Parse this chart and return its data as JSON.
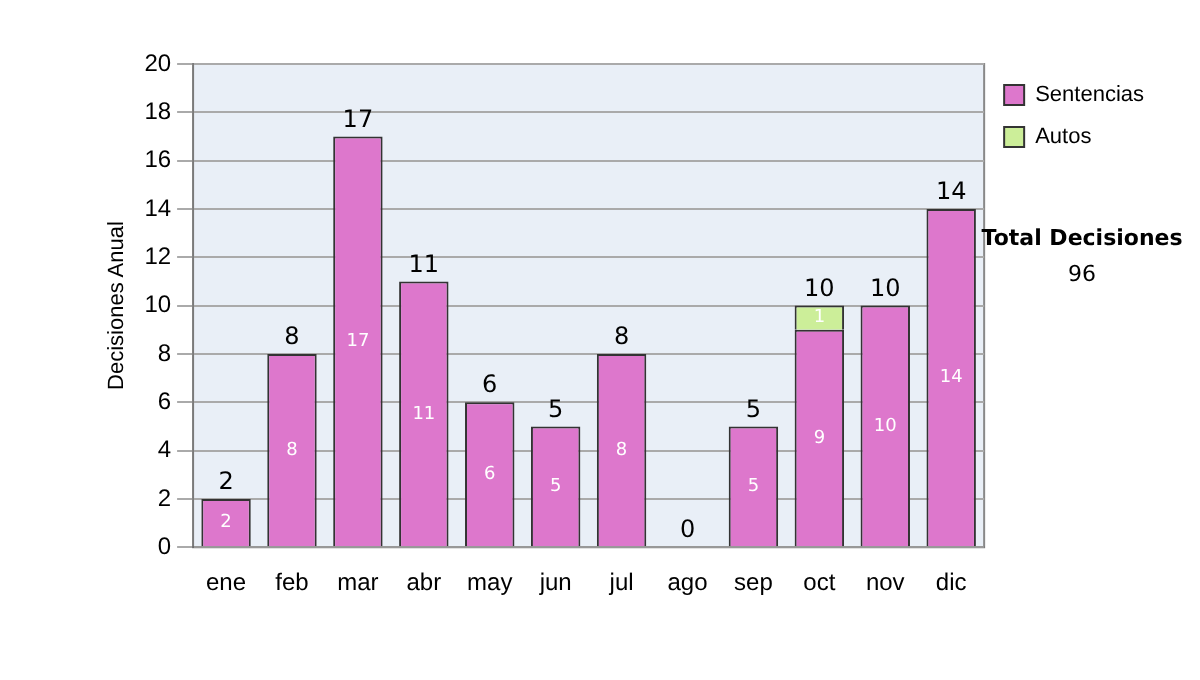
{
  "chart_data": {
    "type": "bar",
    "stacked": true,
    "ylabel": "Decisiones Anual",
    "categories": [
      "ene",
      "feb",
      "mar",
      "abr",
      "may",
      "jun",
      "jul",
      "ago",
      "sep",
      "oct",
      "nov",
      "dic"
    ],
    "series": [
      {
        "name": "Sentencias",
        "color": "#dd77cc",
        "values": [
          2,
          8,
          17,
          11,
          6,
          5,
          8,
          0,
          5,
          9,
          10,
          14
        ],
        "value_labels": [
          "2",
          "8",
          "17",
          "11",
          "6",
          "5",
          "8",
          null,
          "5",
          "9",
          "10",
          "14"
        ]
      },
      {
        "name": "Autos",
        "color": "#ccee99",
        "values": [
          null,
          null,
          null,
          null,
          null,
          null,
          null,
          null,
          null,
          1,
          null,
          null
        ],
        "value_labels": [
          null,
          null,
          null,
          null,
          null,
          null,
          null,
          null,
          null,
          "1",
          null,
          null
        ]
      }
    ],
    "totals": [
      "2",
      "8",
      "17",
      "11",
      "6",
      "5",
      "8",
      "0",
      "5",
      "10",
      "10",
      "14"
    ],
    "ylim": [
      0,
      20
    ],
    "yticks": [
      0,
      2,
      4,
      6,
      8,
      10,
      12,
      14,
      16,
      18,
      20
    ],
    "grid": "y",
    "legend": "right",
    "annotations": [
      "Total Decisiones",
      "96"
    ]
  }
}
